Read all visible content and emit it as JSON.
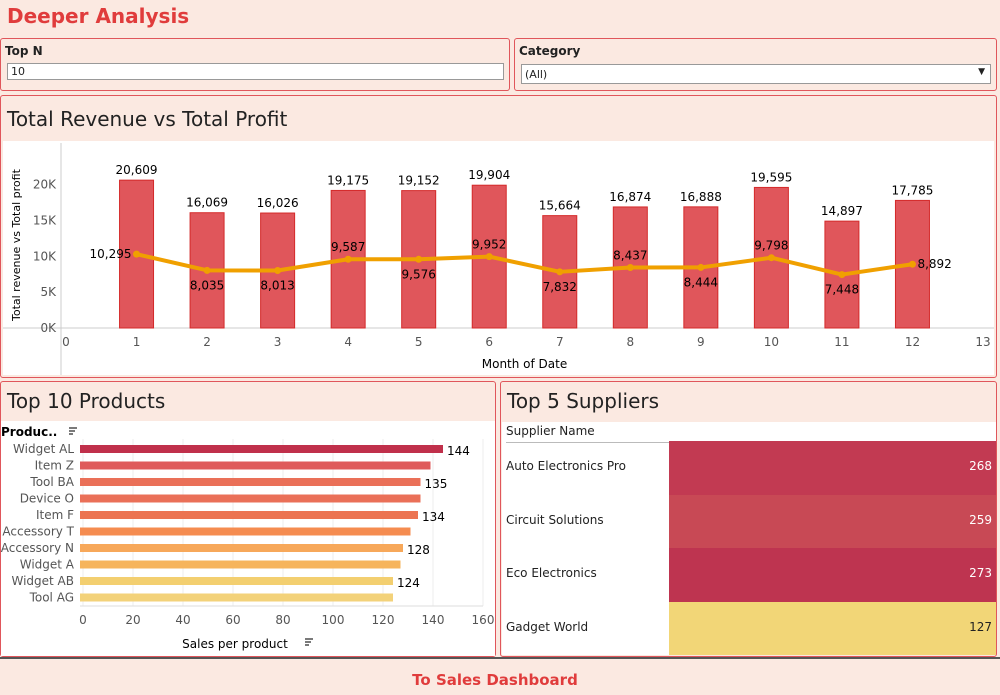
{
  "page_title": "Deeper Analysis",
  "filters": {
    "top_n": {
      "label": "Top N",
      "value": "10"
    },
    "category": {
      "label": "Category",
      "value": "(All)",
      "icon": "dropdown-arrow-icon"
    }
  },
  "footer_button": "To Sales Dashboard",
  "chart_data": [
    {
      "type": "bar+line",
      "title": "Total Revenue vs Total Profit",
      "xlabel": "Month of Date",
      "ylabel": "Total revenue vs Total profit",
      "x": [
        1,
        2,
        3,
        4,
        5,
        6,
        7,
        8,
        9,
        10,
        11,
        12
      ],
      "xticks": [
        "0",
        "1",
        "2",
        "3",
        "4",
        "5",
        "6",
        "7",
        "8",
        "9",
        "10",
        "11",
        "12",
        "13"
      ],
      "yticks": [
        "0K",
        "5K",
        "10K",
        "15K",
        "20K"
      ],
      "xlim": [
        0,
        13
      ],
      "ylim": [
        0,
        23000
      ],
      "series": [
        {
          "type": "bar",
          "values": [
            20609,
            16069,
            16026,
            19175,
            19152,
            19904,
            15664,
            16874,
            16888,
            19595,
            14897,
            17785
          ],
          "labels": [
            "20,609",
            "16,069",
            "16,026",
            "19,175",
            "19,152",
            "19,904",
            "15,664",
            "16,874",
            "16,888",
            "19,595",
            "14,897",
            "17,785"
          ],
          "color": "#e0565b"
        },
        {
          "type": "line",
          "values": [
            10295,
            8035,
            8013,
            9587,
            9576,
            9952,
            7832,
            8437,
            8444,
            9798,
            7448,
            8892
          ],
          "labels": [
            "10,295",
            "8,035",
            "8,013",
            "9,587",
            "9,576",
            "9,952",
            "7,832",
            "8,437",
            "8,444",
            "9,798",
            "7,448",
            "8,892"
          ],
          "color": "#f0a000"
        }
      ],
      "grid": false
    },
    {
      "type": "bar",
      "orientation": "horizontal",
      "title": "Top 10 Products",
      "ylabel": "Produc..",
      "xlabel": "Sales per product",
      "categories": [
        "Widget AL",
        "Item Z",
        "Tool BA",
        "Device O",
        "Item F",
        "Accessory T",
        "Accessory N",
        "Widget A",
        "Widget AB",
        "Tool AG"
      ],
      "values": [
        144,
        139,
        135,
        135,
        134,
        131,
        128,
        127,
        124,
        124
      ],
      "data_labels": [
        "144",
        "",
        "135",
        "",
        "134",
        "",
        "128",
        "",
        "124",
        ""
      ],
      "xticks": [
        "0",
        "20",
        "40",
        "60",
        "80",
        "100",
        "120",
        "140",
        "160"
      ],
      "xlim": [
        0,
        160
      ],
      "colors": [
        "#c0304b",
        "#df5a5a",
        "#ea7058",
        "#ea7058",
        "#ec7452",
        "#f58c50",
        "#f7a85a",
        "#f6b45c",
        "#f3cf70",
        "#f3d27a"
      ]
    },
    {
      "type": "heatmap",
      "title": "Top 5 Suppliers",
      "column_header": "Supplier Name",
      "categories": [
        "Auto Electronics Pro",
        "Circuit Solutions",
        "Eco Electronics",
        "Gadget World"
      ],
      "values": [
        "268",
        "259",
        "273",
        "127"
      ],
      "colors": [
        "#c23a52",
        "#c84955",
        "#be3450",
        "#f2d677"
      ]
    }
  ]
}
